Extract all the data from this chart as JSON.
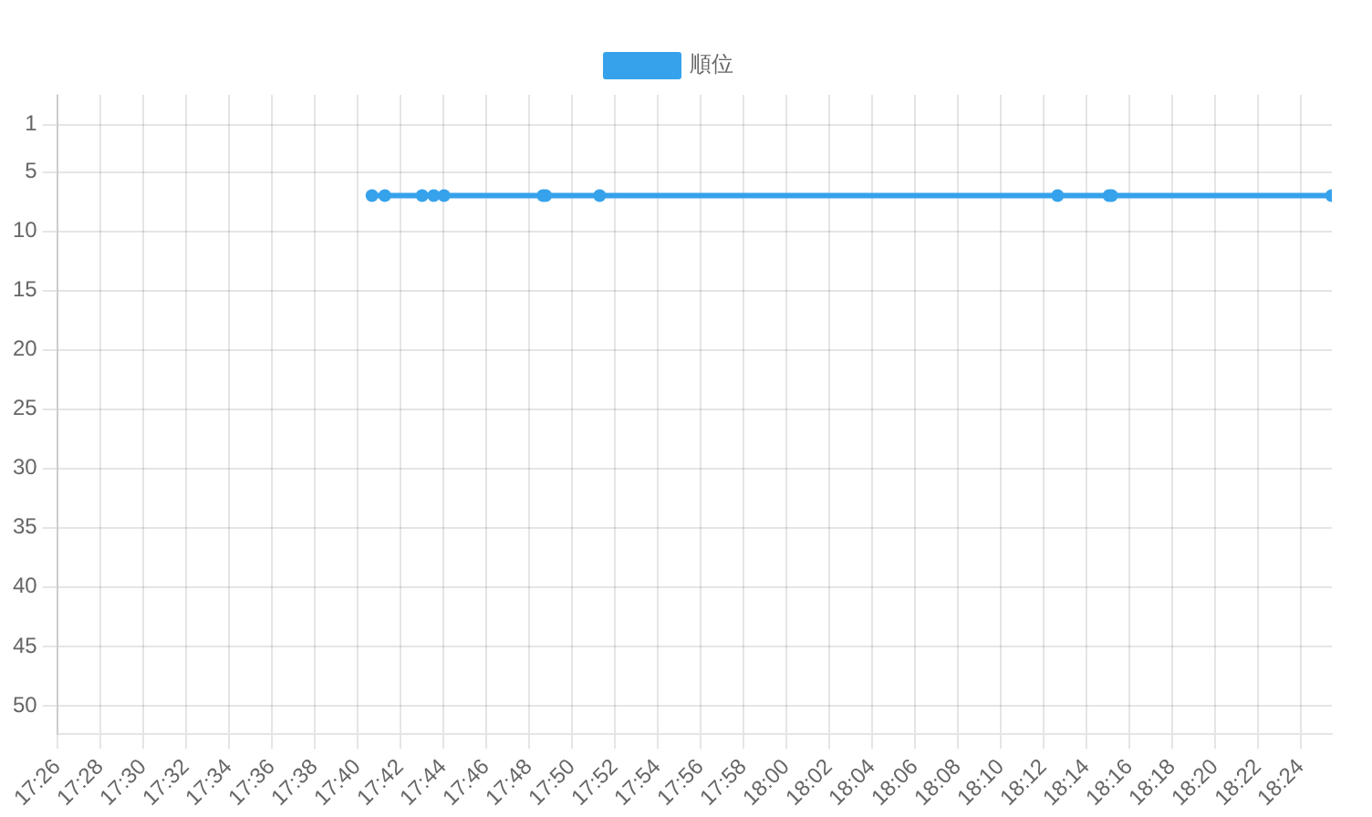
{
  "chart_data": {
    "type": "line",
    "x": [
      17.678,
      17.688,
      17.717,
      17.726,
      17.734,
      17.811,
      17.813,
      17.855,
      18.211,
      18.251,
      18.253,
      18.424
    ],
    "series": [
      {
        "name": "順位",
        "color": "#36a2eb",
        "values": [
          7,
          7,
          7,
          7,
          7,
          7,
          7,
          7,
          7,
          7,
          7,
          7
        ]
      }
    ],
    "xlim": [
      17.4333,
      18.4242
    ],
    "xticks": [
      {
        "value": 17.4333,
        "label": "17:26"
      },
      {
        "value": 17.4667,
        "label": "17:28"
      },
      {
        "value": 17.5,
        "label": "17:30"
      },
      {
        "value": 17.5333,
        "label": "17:32"
      },
      {
        "value": 17.5667,
        "label": "17:34"
      },
      {
        "value": 17.6,
        "label": "17:36"
      },
      {
        "value": 17.6333,
        "label": "17:38"
      },
      {
        "value": 17.6667,
        "label": "17:40"
      },
      {
        "value": 17.7,
        "label": "17:42"
      },
      {
        "value": 17.7333,
        "label": "17:44"
      },
      {
        "value": 17.7667,
        "label": "17:46"
      },
      {
        "value": 17.8,
        "label": "17:48"
      },
      {
        "value": 17.8333,
        "label": "17:50"
      },
      {
        "value": 17.8667,
        "label": "17:52"
      },
      {
        "value": 17.9,
        "label": "17:54"
      },
      {
        "value": 17.9333,
        "label": "17:56"
      },
      {
        "value": 17.9667,
        "label": "17:58"
      },
      {
        "value": 18,
        "label": "18:00"
      },
      {
        "value": 18.0333,
        "label": "18:02"
      },
      {
        "value": 18.0667,
        "label": "18:04"
      },
      {
        "value": 18.1,
        "label": "18:06"
      },
      {
        "value": 18.1333,
        "label": "18:08"
      },
      {
        "value": 18.1667,
        "label": "18:10"
      },
      {
        "value": 18.2,
        "label": "18:12"
      },
      {
        "value": 18.2333,
        "label": "18:14"
      },
      {
        "value": 18.2667,
        "label": "18:16"
      },
      {
        "value": 18.3,
        "label": "18:18"
      },
      {
        "value": 18.3333,
        "label": "18:20"
      },
      {
        "value": 18.3667,
        "label": "18:22"
      },
      {
        "value": 18.4,
        "label": "18:24"
      }
    ],
    "ylim": [
      52.4,
      -1.5
    ],
    "yticks": [
      1,
      5,
      10,
      15,
      20,
      25,
      30,
      35,
      40,
      45,
      50
    ],
    "grid": true,
    "legend": "top",
    "marker": "circle",
    "line_style": "solid"
  }
}
